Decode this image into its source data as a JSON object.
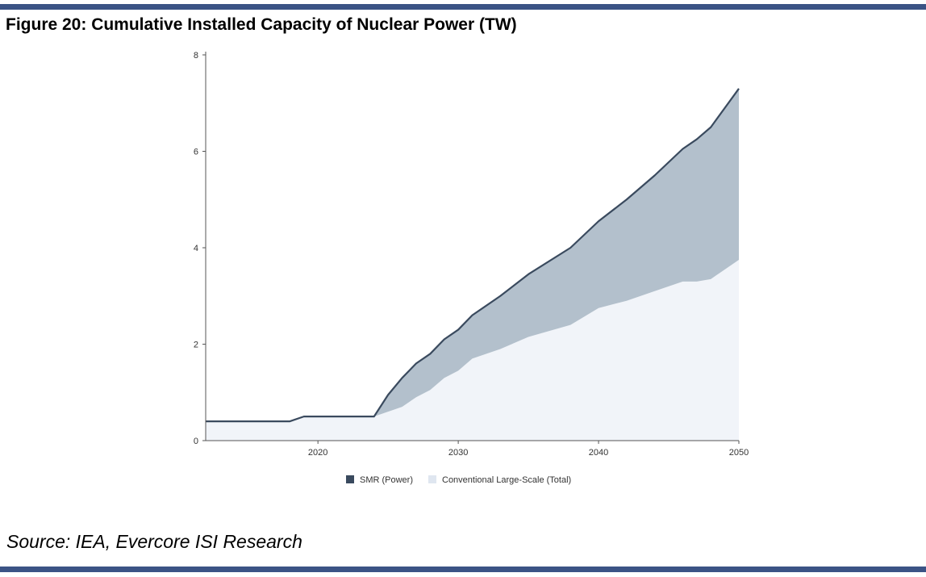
{
  "figure": {
    "title": "Figure 20: Cumulative Installed Capacity of Nuclear Power (TW)",
    "source": "Source: IEA, Evercore ISI Research"
  },
  "colors": {
    "rule": "#3b5385",
    "smr_fill": "#b3c0cc",
    "smr_line": "#3a4a5e",
    "conventional_fill": "#f1f4f9",
    "axis": "#555555"
  },
  "chart_data": {
    "type": "area",
    "stacked": true,
    "title": "",
    "xlabel": "",
    "ylabel": "",
    "xlim": [
      2012,
      2050
    ],
    "ylim": [
      0,
      8
    ],
    "x_ticks": [
      2020,
      2030,
      2040,
      2050
    ],
    "y_ticks": [
      0,
      2,
      4,
      6,
      8
    ],
    "grid": false,
    "legend_position": "bottom-center",
    "x": [
      2012,
      2018,
      2019,
      2024,
      2025,
      2026,
      2027,
      2028,
      2029,
      2030,
      2031,
      2033,
      2035,
      2038,
      2040,
      2042,
      2044,
      2046,
      2047,
      2048,
      2050
    ],
    "series": [
      {
        "name": "SMR (Power)",
        "values": [
          0,
          0,
          0,
          0,
          0.35,
          0.6,
          0.7,
          0.75,
          0.8,
          0.85,
          0.9,
          1.1,
          1.3,
          1.6,
          1.8,
          2.1,
          2.4,
          2.75,
          2.95,
          3.15,
          3.55
        ]
      },
      {
        "name": "Conventional Large-Scale (Total)",
        "values": [
          0.4,
          0.4,
          0.5,
          0.5,
          0.6,
          0.7,
          0.9,
          1.05,
          1.3,
          1.45,
          1.7,
          1.9,
          2.15,
          2.4,
          2.75,
          2.9,
          3.1,
          3.3,
          3.3,
          3.35,
          3.75
        ]
      }
    ]
  }
}
